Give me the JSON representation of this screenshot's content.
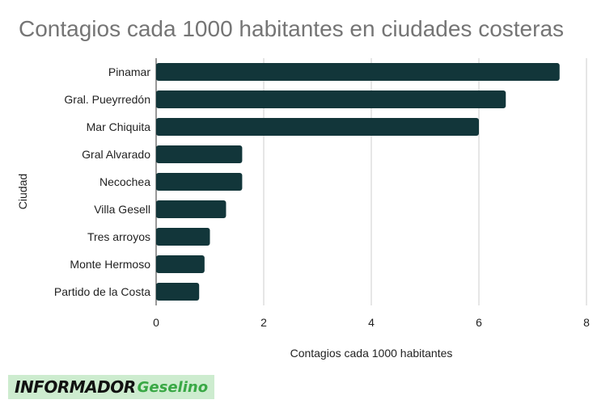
{
  "chart_data": {
    "type": "bar",
    "orientation": "horizontal",
    "title": "Contagios cada 1000 habitantes en ciudades costeras",
    "xlabel": "Contagios cada 1000 habitantes",
    "ylabel": "Ciudad",
    "categories": [
      "Pinamar",
      "Gral. Pueyrredón",
      "Mar Chiquita",
      "Gral Alvarado",
      "Necochea",
      "Villa Gesell",
      "Tres arroyos",
      "Monte Hermoso",
      "Partido de la Costa"
    ],
    "values": [
      7.5,
      6.5,
      6.0,
      1.6,
      1.6,
      1.3,
      1.0,
      0.9,
      0.8
    ],
    "xlim": [
      0,
      8
    ],
    "xticks": [
      0,
      2,
      4,
      6,
      8
    ],
    "grid": true,
    "colors": {
      "bar": "#12363a",
      "grid": "#cccccc",
      "title": "#757575",
      "text": "#222222"
    }
  },
  "logo": {
    "word1": "INFORMADOR",
    "word2": "Geselino"
  }
}
